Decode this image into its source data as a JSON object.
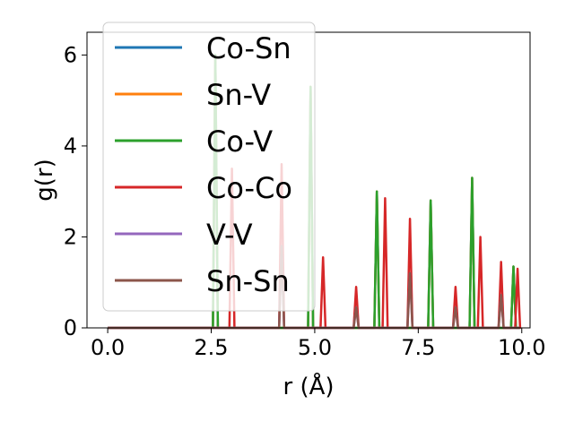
{
  "chart_data": {
    "type": "line",
    "xlabel": "r (Å)",
    "ylabel": "g(r)",
    "xlim": [
      -0.5,
      10.2
    ],
    "ylim": [
      0,
      6.5
    ],
    "xticks": [
      0.0,
      2.5,
      5.0,
      7.5,
      10.0
    ],
    "xtick_labels": [
      "0.0",
      "2.5",
      "5.0",
      "7.5",
      "10.0"
    ],
    "yticks": [
      0,
      2,
      4,
      6
    ],
    "ytick_labels": [
      "0",
      "2",
      "4",
      "6"
    ],
    "grid": false,
    "legend_position": "upper-left",
    "series": [
      {
        "name": "Co-Sn",
        "color": "#1f77b4",
        "peaks": [
          [
            2.6,
            6.0
          ],
          [
            4.9,
            5.3
          ],
          [
            6.5,
            3.0
          ],
          [
            7.8,
            2.8
          ],
          [
            8.8,
            3.3
          ],
          [
            9.8,
            1.35
          ]
        ]
      },
      {
        "name": "Sn-V",
        "color": "#ff7f0e",
        "peaks": [
          [
            2.6,
            6.0
          ],
          [
            4.9,
            5.3
          ],
          [
            6.5,
            3.0
          ],
          [
            7.8,
            2.8
          ],
          [
            8.8,
            3.3
          ],
          [
            9.8,
            1.35
          ]
        ]
      },
      {
        "name": "Co-V",
        "color": "#2ca02c",
        "peaks": [
          [
            2.6,
            6.0
          ],
          [
            4.9,
            5.3
          ],
          [
            6.5,
            3.0
          ],
          [
            7.8,
            2.8
          ],
          [
            8.8,
            3.3
          ],
          [
            9.8,
            1.35
          ]
        ]
      },
      {
        "name": "Co-Co",
        "color": "#d62728",
        "peaks": [
          [
            3.0,
            3.5
          ],
          [
            4.2,
            3.6
          ],
          [
            5.2,
            1.55
          ],
          [
            6.0,
            0.9
          ],
          [
            6.7,
            2.85
          ],
          [
            7.3,
            2.4
          ],
          [
            8.4,
            0.9
          ],
          [
            9.0,
            2.0
          ],
          [
            9.5,
            1.45
          ],
          [
            9.9,
            1.3
          ]
        ]
      },
      {
        "name": "V-V",
        "color": "#9467bd",
        "peaks": [
          [
            4.2,
            1.8
          ],
          [
            6.0,
            0.45
          ],
          [
            7.3,
            1.2
          ],
          [
            8.4,
            0.45
          ],
          [
            9.5,
            0.72
          ]
        ]
      },
      {
        "name": "Sn-Sn",
        "color": "#8c564b",
        "peaks": [
          [
            4.2,
            1.8
          ],
          [
            6.0,
            0.45
          ],
          [
            7.3,
            1.2
          ],
          [
            8.4,
            0.45
          ],
          [
            9.5,
            0.72
          ]
        ]
      }
    ]
  }
}
